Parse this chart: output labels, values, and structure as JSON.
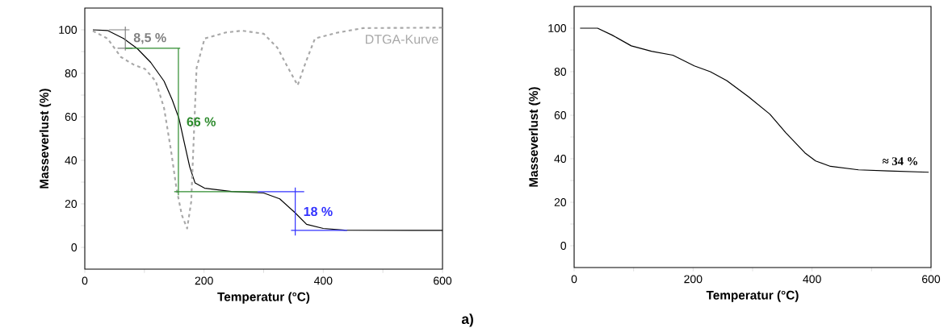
{
  "chart_data": [
    {
      "type": "line",
      "xlabel": "Temperatur (°C)",
      "ylabel": "Masseverlust (%)",
      "xlim": [
        0,
        600
      ],
      "ylim": [
        -10,
        110
      ],
      "xticks": [
        0,
        {
          "value": 100,
          "label": null
        },
        200,
        {
          "value": 300,
          "label": null
        },
        400,
        {
          "value": 500,
          "label": null
        },
        600
      ],
      "yticks": [
        0,
        {
          "value": 10,
          "label": null
        },
        20,
        {
          "value": 30,
          "label": null
        },
        40,
        {
          "value": 50,
          "label": null
        },
        60,
        {
          "value": 70,
          "label": null
        },
        80,
        {
          "value": 90,
          "label": null
        },
        100
      ],
      "series": [
        {
          "color": "#000000",
          "line_style": "solid",
          "x": [
            13.5,
            38,
            65,
            88,
            110.6,
            133,
            146.7,
            158,
            167,
            176,
            185,
            201,
            246,
            300,
            327,
            352,
            372,
            400,
            436,
            600
          ],
          "values": [
            100,
            99.7,
            96,
            91.4,
            85,
            76.4,
            67.8,
            59.2,
            48,
            37,
            29.6,
            27.2,
            25.7,
            25,
            22.3,
            16.1,
            10.6,
            8.7,
            7.9,
            7.8
          ]
        },
        {
          "name": "DTGA-Kurve",
          "color": "#a8a8a8",
          "line_style": "dashed",
          "x": [
            13.5,
            38,
            60.6,
            83,
            101,
            119,
            133,
            144.7,
            153.7,
            162.7,
            171.7,
            178.5,
            183,
            187.5,
            201,
            237,
            264,
            300,
            323,
            341,
            357,
            370.5,
            386,
            422,
            467,
            600
          ],
          "values": [
            99.5,
            96,
            87.5,
            83.8,
            82,
            76.4,
            64,
            44.4,
            27.2,
            14.9,
            8.7,
            21,
            51.8,
            82.5,
            96,
            98.8,
            99.6,
            98.2,
            91.8,
            82.5,
            74.5,
            85,
            96,
            98.6,
            100.8,
            101
          ]
        },
        {
          "name": "8,5 %",
          "color": "#808080",
          "line_style": "solid",
          "x": [
            40,
            75,
            null,
            68,
            68,
            null,
            55,
            80
          ],
          "values": [
            100,
            100,
            null,
            101.5,
            90.5,
            null,
            91.5,
            91.5
          ]
        },
        {
          "name": "66 %",
          "color": "#2e8b2e",
          "line_style": "solid",
          "x": [
            68,
            160,
            null,
            157,
            157,
            null,
            150,
            290
          ],
          "values": [
            91.5,
            91.5,
            null,
            91.5,
            24,
            null,
            25.6,
            25.6
          ]
        },
        {
          "name": "18 %",
          "color": "#3333ff",
          "line_style": "solid",
          "x": [
            290,
            368,
            null,
            353,
            353,
            null,
            346,
            440
          ],
          "values": [
            25.6,
            25.6,
            null,
            27.5,
            5.5,
            null,
            7.8,
            7.8
          ]
        }
      ],
      "annotations": [
        "a)"
      ]
    },
    {
      "type": "line",
      "xlabel": "Temperatur (°C)",
      "ylabel": "Masseverlust (%)",
      "xlim": [
        0,
        600
      ],
      "ylim": [
        -10,
        110
      ],
      "xticks": [
        0,
        {
          "value": 100,
          "label": null
        },
        200,
        {
          "value": 300,
          "label": null
        },
        400,
        {
          "value": 500,
          "label": null
        },
        600
      ],
      "yticks": [
        0,
        {
          "value": 10,
          "label": null
        },
        20,
        {
          "value": 30,
          "label": null
        },
        40,
        {
          "value": 50,
          "label": null
        },
        60,
        {
          "value": 70,
          "label": null
        },
        80,
        {
          "value": 90,
          "label": null
        },
        100
      ],
      "series": [
        {
          "color": "#000000",
          "line_style": "solid",
          "x": [
            10,
            39.4,
            64,
            96,
            130,
            166,
            202,
            229,
            256.5,
            293,
            329,
            356,
            388,
            406,
            431,
            478,
            528,
            596
          ],
          "values": [
            100,
            100,
            96.8,
            91.9,
            89.4,
            87.6,
            82.7,
            80,
            75.9,
            68.5,
            60.5,
            51.9,
            42.7,
            39,
            36.5,
            34.9,
            34.4,
            33.8
          ]
        }
      ],
      "annotations": [
        "≈ 34 %"
      ]
    }
  ]
}
